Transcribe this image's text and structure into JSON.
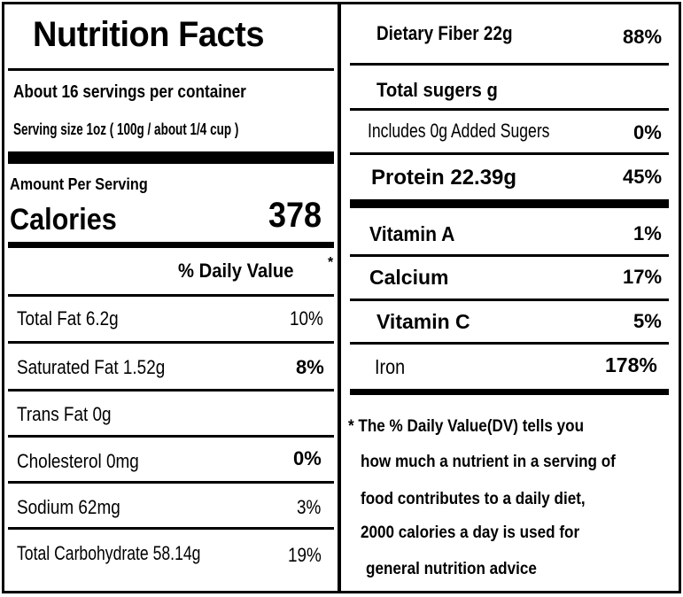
{
  "label": {
    "title": "Nutrition Facts",
    "servings_per_container": "About 16 servings per container",
    "serving_size": "Serving size 1oz ( 100g / about 1/4 cup )",
    "amount_per_serving": "Amount Per Serving",
    "calories_label": "Calories",
    "calories_value": "378",
    "daily_value_header": "% Daily Value",
    "asterisk": "*"
  },
  "left_rows": [
    {
      "name": "Total Fat  6.2g",
      "dv": "10%"
    },
    {
      "name": "Saturated Fat 1.52g",
      "dv": "8%"
    },
    {
      "name": "Trans Fat 0g",
      "dv": ""
    },
    {
      "name": "Cholesterol  0mg",
      "dv": "0%"
    },
    {
      "name": "Sodium  62mg",
      "dv": "3%"
    },
    {
      "name": "Total Carbohydrate 58.14g",
      "dv": "19%"
    }
  ],
  "right_rows": [
    {
      "name": "Dietary Fiber 22g",
      "dv": "88%"
    },
    {
      "name": "Total sugers g",
      "dv": ""
    },
    {
      "name": "Includes 0g Added Sugers",
      "dv": "0%"
    },
    {
      "name": "Protein 22.39g",
      "dv": "45%"
    },
    {
      "name": "Vitamin A",
      "dv": "1%"
    },
    {
      "name": "Calcium",
      "dv": "17%"
    },
    {
      "name": "Vitamin C",
      "dv": "5%"
    },
    {
      "name": "Iron",
      "dv": "178%"
    }
  ],
  "footnote": {
    "line1": "* The % Daily Value(DV)  tells you",
    "line2": "how much a nutrient in a serving of",
    "line3": "food contributes to a daily diet,",
    "line4": "2000 calories a day is used for",
    "line5": "general nutrition advice"
  }
}
